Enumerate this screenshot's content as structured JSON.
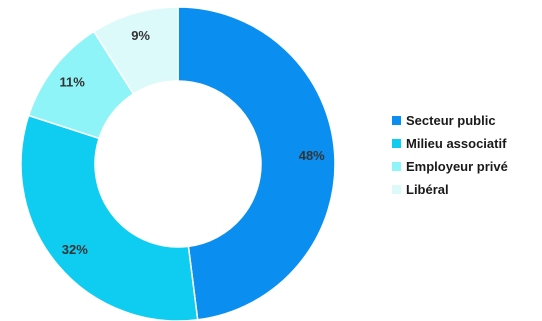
{
  "chart_data": {
    "type": "pie",
    "variant": "donut",
    "title": "",
    "labels": [
      "Secteur public",
      "Milieu associatif",
      "Employeur privé",
      "Libéral"
    ],
    "values": [
      48,
      32,
      11,
      9
    ],
    "value_labels": [
      "48%",
      "32%",
      "11%",
      "9%"
    ],
    "colors": [
      "#0a8ff0",
      "#0ecdf0",
      "#8ff4f8",
      "#ddfafb"
    ],
    "legend_position": "right",
    "start": "top",
    "direction": "clockwise"
  }
}
